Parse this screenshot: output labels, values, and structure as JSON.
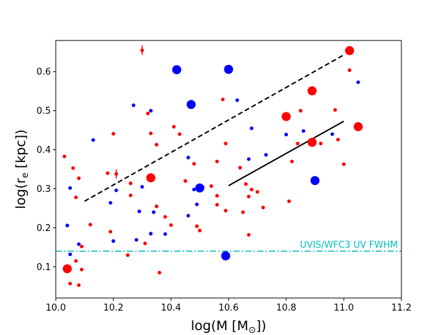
{
  "chart_data": {
    "type": "scatter",
    "title": "",
    "xlabel_main": "log(M [M",
    "xlabel_sub": "⊙",
    "xlabel_end": "])",
    "ylabel_main": "log(r",
    "ylabel_sub": "e",
    "ylabel_end": " [kpc])",
    "xlim": [
      10.0,
      11.2
    ],
    "ylim": [
      0.02,
      0.68
    ],
    "xticks": [
      10.0,
      10.2,
      10.4,
      10.6,
      10.8,
      11.0,
      11.2
    ],
    "xtick_labels": [
      "10.0",
      "10.2",
      "10.4",
      "10.6",
      "10.8",
      "11.0",
      "11.2"
    ],
    "yticks": [
      0.1,
      0.2,
      0.3,
      0.4,
      0.5,
      0.6
    ],
    "ytick_labels": [
      "0.1",
      "0.2",
      "0.3",
      "0.4",
      "0.5",
      "0.6"
    ],
    "grid": false,
    "colors": {
      "red": "#ff0000",
      "blue": "#0000ff",
      "line": "#000000",
      "fwhm": "#00bfbf"
    },
    "fwhm_line": {
      "y": 0.14,
      "label": "UVIS/WFC3 UV FWHM"
    },
    "fit_lines": [
      {
        "style": "dashed",
        "x": [
          10.1,
          11.0
        ],
        "y": [
          0.268,
          0.643
        ]
      },
      {
        "style": "solid",
        "x": [
          10.6,
          11.0
        ],
        "y": [
          0.308,
          0.473
        ]
      }
    ],
    "red_small": [
      [
        10.03,
        0.383
      ],
      [
        10.06,
        0.353
      ],
      [
        10.07,
        0.278
      ],
      [
        10.08,
        0.327
      ],
      [
        10.07,
        0.115
      ],
      [
        10.09,
        0.093
      ],
      [
        10.05,
        0.057
      ],
      [
        10.08,
        0.053
      ],
      [
        10.09,
        0.152
      ],
      [
        10.12,
        0.208
      ],
      [
        10.18,
        0.34
      ],
      [
        10.2,
        0.441
      ],
      [
        10.19,
        0.19
      ],
      [
        10.21,
        0.338
      ],
      [
        10.26,
        0.314
      ],
      [
        10.26,
        0.283
      ],
      [
        10.25,
        0.13
      ],
      [
        10.31,
        0.16
      ],
      [
        10.32,
        0.493
      ],
      [
        10.33,
        0.442
      ],
      [
        10.35,
        0.413
      ],
      [
        10.35,
        0.255
      ],
      [
        10.36,
        0.085
      ],
      [
        10.38,
        0.228
      ],
      [
        10.4,
        0.207
      ],
      [
        10.41,
        0.459
      ],
      [
        10.43,
        0.44
      ],
      [
        10.45,
        0.32
      ],
      [
        10.48,
        0.364
      ],
      [
        10.49,
        0.204
      ],
      [
        10.5,
        0.193
      ],
      [
        10.51,
        0.305
      ],
      [
        10.54,
        0.307
      ],
      [
        10.56,
        0.37
      ],
      [
        10.56,
        0.282
      ],
      [
        10.56,
        0.259
      ],
      [
        10.58,
        0.529
      ],
      [
        10.59,
        0.416
      ],
      [
        10.59,
        0.244
      ],
      [
        10.64,
        0.354
      ],
      [
        10.65,
        0.24
      ],
      [
        10.66,
        0.312
      ],
      [
        10.67,
        0.28
      ],
      [
        10.67,
        0.182
      ],
      [
        10.68,
        0.298
      ],
      [
        10.7,
        0.292
      ],
      [
        10.72,
        0.252
      ],
      [
        10.81,
        0.268
      ],
      [
        10.82,
        0.37
      ],
      [
        10.84,
        0.416
      ],
      [
        10.85,
        0.5
      ],
      [
        10.92,
        0.416
      ],
      [
        10.97,
        0.502
      ],
      [
        10.98,
        0.426
      ],
      [
        11.0,
        0.363
      ],
      [
        11.02,
        0.604
      ],
      [
        10.3,
        0.655
      ]
    ],
    "red_large": [
      [
        10.04,
        0.095
      ],
      [
        10.33,
        0.328
      ],
      [
        10.8,
        0.485
      ],
      [
        10.89,
        0.551
      ],
      [
        10.89,
        0.419
      ],
      [
        11.02,
        0.654
      ],
      [
        11.05,
        0.459
      ]
    ],
    "blue_small": [
      [
        10.04,
        0.206
      ],
      [
        10.05,
        0.302
      ],
      [
        10.05,
        0.132
      ],
      [
        10.08,
        0.158
      ],
      [
        10.13,
        0.425
      ],
      [
        10.19,
        0.264
      ],
      [
        10.2,
        0.166
      ],
      [
        10.21,
        0.296
      ],
      [
        10.27,
        0.514
      ],
      [
        10.28,
        0.169
      ],
      [
        10.29,
        0.242
      ],
      [
        10.3,
        0.305
      ],
      [
        10.33,
        0.5
      ],
      [
        10.33,
        0.185
      ],
      [
        10.34,
        0.24
      ],
      [
        10.38,
        0.184
      ],
      [
        10.46,
        0.38
      ],
      [
        10.46,
        0.231
      ],
      [
        10.48,
        0.298
      ],
      [
        10.49,
        0.26
      ],
      [
        10.63,
        0.527
      ],
      [
        10.67,
        0.376
      ],
      [
        10.68,
        0.455
      ],
      [
        10.73,
        0.387
      ],
      [
        10.8,
        0.439
      ],
      [
        10.86,
        0.448
      ],
      [
        10.96,
        0.44
      ],
      [
        11.05,
        0.573
      ]
    ],
    "blue_large": [
      [
        10.42,
        0.605
      ],
      [
        10.47,
        0.516
      ],
      [
        10.5,
        0.302
      ],
      [
        10.6,
        0.606
      ],
      [
        10.59,
        0.128
      ],
      [
        10.9,
        0.321
      ]
    ],
    "error_bars": [
      {
        "x": 10.3,
        "y": 0.655,
        "dy": 0.012
      },
      {
        "x": 10.21,
        "y": 0.338,
        "dy": 0.012
      }
    ]
  }
}
